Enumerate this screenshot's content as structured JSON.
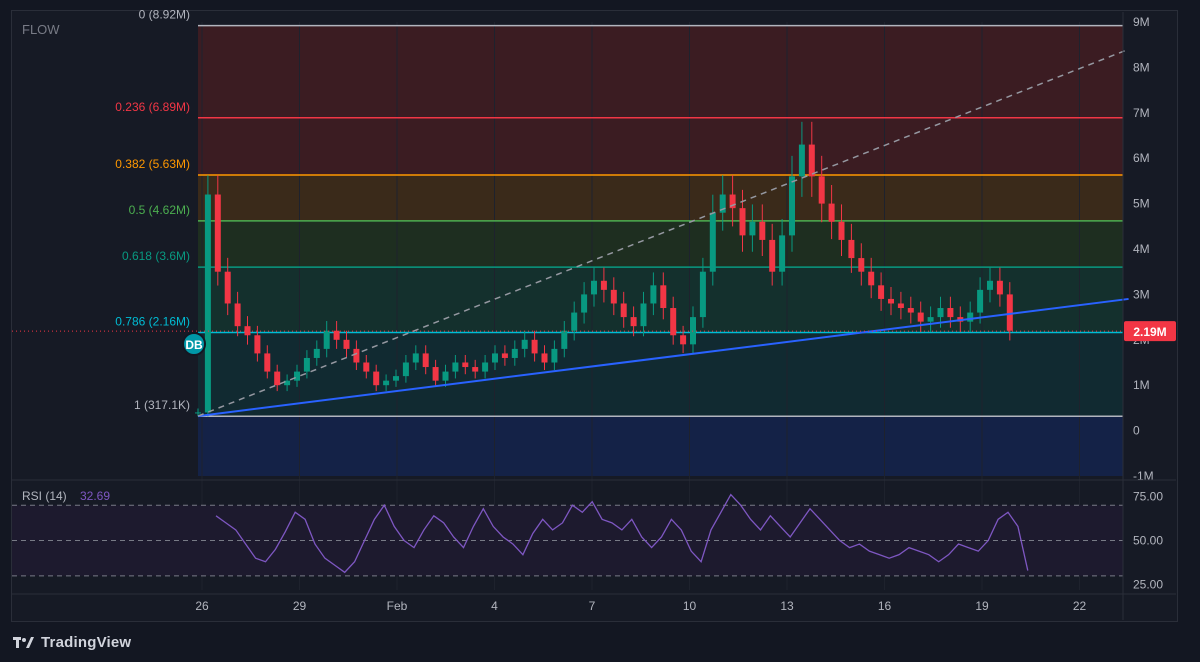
{
  "chart_data": [
    {
      "type": "candlestick",
      "symbol": "FLOW",
      "ylim": [
        -1000000,
        9000000
      ],
      "y_ticks": [
        "9M",
        "8M",
        "7M",
        "6M",
        "5M",
        "4M",
        "3M",
        "2M",
        "1M",
        "0",
        "-1M"
      ],
      "x_ticks": [
        "26",
        "29",
        "Feb",
        "4",
        "7",
        "10",
        "13",
        "16",
        "19",
        "22"
      ],
      "last_price_label": "2.19M",
      "last_price": 2190000,
      "fib_levels": [
        {
          "label": "0 (8.92M)",
          "value": 8920000,
          "color": "#b2b5be",
          "fill": "#3b1c22"
        },
        {
          "label": "0.236 (6.89M)",
          "value": 6890000,
          "color": "#f23645",
          "fill": "#3b1c22"
        },
        {
          "label": "0.382 (5.63M)",
          "value": 5630000,
          "color": "#ff9800",
          "fill": "#3a2a1a"
        },
        {
          "label": "0.5 (4.62M)",
          "value": 4620000,
          "color": "#4caf50",
          "fill": "#1e2e20"
        },
        {
          "label": "0.618 (3.6M)",
          "value": 3600000,
          "color": "#089981",
          "fill": "#14302d"
        },
        {
          "label": "0.786 (2.16M)",
          "value": 2160000,
          "color": "#00bcd4",
          "fill": "#112a31"
        },
        {
          "label": "1 (317.1K)",
          "value": 317100,
          "color": "#b2b5be",
          "fill": "#262630"
        }
      ],
      "fib_below_fill": "#142247",
      "trendline": {
        "from": [
          0,
          320000
        ],
        "to": [
          94,
          2900000
        ],
        "color": "#2962ff"
      },
      "dashed_line": {
        "from": [
          0,
          320000
        ],
        "to": [
          94,
          8400000
        ],
        "color": "#9598a1"
      },
      "marker": "DB",
      "series": [
        {
          "name": "price",
          "values": [
            400000,
            5200000,
            3500000,
            2800000,
            2300000,
            2100000,
            1700000,
            1300000,
            1000000,
            1100000,
            1300000,
            1600000,
            1800000,
            2200000,
            2000000,
            1800000,
            1500000,
            1300000,
            1000000,
            1100000,
            1200000,
            1500000,
            1700000,
            1400000,
            1100000,
            1300000,
            1500000,
            1400000,
            1300000,
            1500000,
            1700000,
            1600000,
            1800000,
            2000000,
            1700000,
            1500000,
            1800000,
            2200000,
            2600000,
            3000000,
            3300000,
            3100000,
            2800000,
            2500000,
            2300000,
            2800000,
            3200000,
            2700000,
            2100000,
            1900000,
            2500000,
            3500000,
            4800000,
            5200000,
            4900000,
            4300000,
            4600000,
            4200000,
            3500000,
            4300000,
            5600000,
            6300000,
            5600000,
            5000000,
            4600000,
            4200000,
            3800000,
            3500000,
            3200000,
            2900000,
            2800000,
            2700000,
            2600000,
            2400000,
            2500000,
            2700000,
            2500000,
            2400000,
            2600000,
            3100000,
            3300000,
            3000000,
            2200000
          ]
        },
        {
          "name": "RSI (14)",
          "values": [
            64,
            60,
            56,
            48,
            40,
            38,
            45,
            55,
            66,
            62,
            48,
            40,
            36,
            32,
            38,
            50,
            62,
            70,
            58,
            50,
            46,
            56,
            64,
            60,
            52,
            46,
            58,
            68,
            58,
            52,
            48,
            42,
            54,
            62,
            56,
            60,
            70,
            66,
            72,
            62,
            60,
            56,
            62,
            52,
            46,
            52,
            62,
            56,
            44,
            38,
            56,
            66,
            76,
            70,
            62,
            56,
            64,
            58,
            52,
            60,
            68,
            62,
            56,
            50,
            46,
            48,
            44,
            42,
            40,
            42,
            46,
            44,
            42,
            38,
            42,
            48,
            46,
            44,
            50,
            62,
            66,
            58,
            33
          ]
        }
      ]
    },
    {
      "type": "line",
      "indicator": "RSI (14)",
      "current_value_label": "32.69",
      "current_value": 32.69,
      "ylim": [
        22,
        82
      ],
      "y_ticks": [
        "75.00",
        "50.00",
        "25.00"
      ],
      "bands": [
        70,
        50,
        30
      ],
      "color": "#7e57c2"
    }
  ],
  "footer": {
    "brand": "TradingView"
  }
}
